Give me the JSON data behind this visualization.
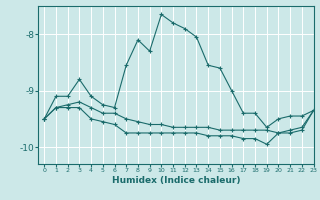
{
  "xlabel": "Humidex (Indice chaleur)",
  "bg_color": "#cce8e8",
  "line_color": "#1a6b6b",
  "grid_color": "#ffffff",
  "xlim": [
    -0.5,
    23
  ],
  "ylim": [
    -10.3,
    -7.5
  ],
  "yticks": [
    -10,
    -9,
    -8
  ],
  "xticks": [
    0,
    1,
    2,
    3,
    4,
    5,
    6,
    7,
    8,
    9,
    10,
    11,
    12,
    13,
    14,
    15,
    16,
    17,
    18,
    19,
    20,
    21,
    22,
    23
  ],
  "line1_x": [
    0,
    1,
    2,
    3,
    4,
    5,
    6,
    7,
    8,
    9,
    10,
    11,
    12,
    13,
    14,
    15,
    16,
    17,
    18,
    19,
    20,
    21,
    22,
    23
  ],
  "line1_y": [
    -9.5,
    -9.1,
    -9.1,
    -8.8,
    -9.1,
    -9.25,
    -9.3,
    -8.55,
    -8.1,
    -8.3,
    -7.65,
    -7.8,
    -7.9,
    -8.05,
    -8.55,
    -8.6,
    -9.0,
    -9.4,
    -9.4,
    -9.65,
    -9.5,
    -9.45,
    -9.45,
    -9.35
  ],
  "line2_x": [
    0,
    1,
    2,
    3,
    4,
    5,
    6,
    7,
    8,
    9,
    10,
    11,
    12,
    13,
    14,
    15,
    16,
    17,
    18,
    19,
    20,
    21,
    22,
    23
  ],
  "line2_y": [
    -9.5,
    -9.3,
    -9.25,
    -9.2,
    -9.3,
    -9.4,
    -9.4,
    -9.5,
    -9.55,
    -9.6,
    -9.6,
    -9.65,
    -9.65,
    -9.65,
    -9.65,
    -9.7,
    -9.7,
    -9.7,
    -9.7,
    -9.7,
    -9.75,
    -9.7,
    -9.65,
    -9.35
  ],
  "line3_x": [
    0,
    1,
    2,
    3,
    4,
    5,
    6,
    7,
    8,
    9,
    10,
    11,
    12,
    13,
    14,
    15,
    16,
    17,
    18,
    19,
    20,
    21,
    22,
    23
  ],
  "line3_y": [
    -9.5,
    -9.3,
    -9.3,
    -9.3,
    -9.5,
    -9.55,
    -9.6,
    -9.75,
    -9.75,
    -9.75,
    -9.75,
    -9.75,
    -9.75,
    -9.75,
    -9.8,
    -9.8,
    -9.8,
    -9.85,
    -9.85,
    -9.95,
    -9.75,
    -9.75,
    -9.7,
    -9.35
  ]
}
